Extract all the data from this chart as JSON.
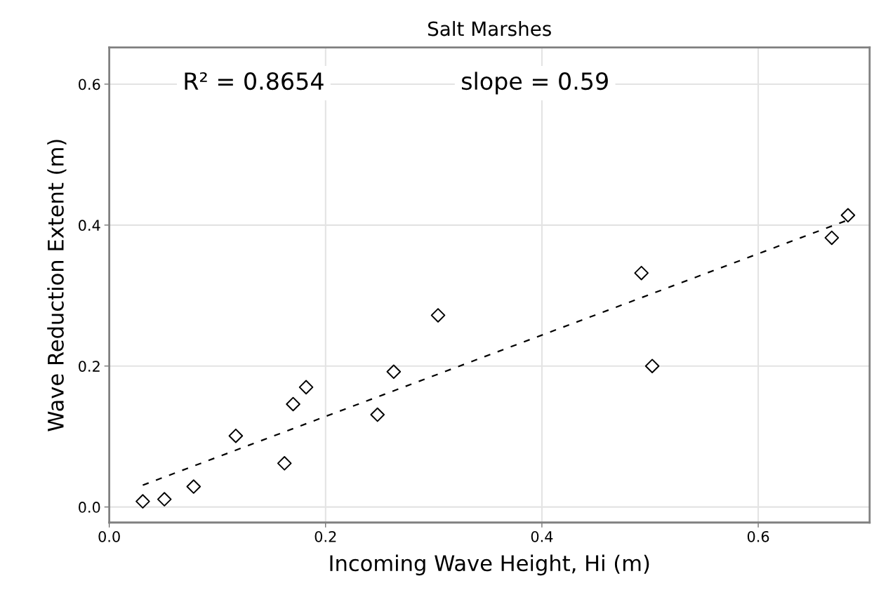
{
  "chart_data": {
    "type": "scatter",
    "title": "Salt Marshes",
    "xlabel": "Incoming Wave Height, Hi (m)",
    "ylabel": "Wave Reduction Extent (m)",
    "annotations": [
      "R² = 0.8654",
      "slope = 0.59"
    ],
    "x": [
      0.031,
      0.051,
      0.078,
      0.117,
      0.162,
      0.17,
      0.182,
      0.248,
      0.263,
      0.304,
      0.492,
      0.502,
      0.668,
      0.683
    ],
    "series": [
      {
        "color": "#000000",
        "marker": "diamond",
        "values": [
          0.008,
          0.011,
          0.029,
          0.101,
          0.062,
          0.146,
          0.17,
          0.131,
          0.192,
          0.272,
          0.332,
          0.2,
          0.382,
          0.414
        ]
      },
      {
        "type": "line",
        "color": "#000000",
        "line_style": "dashed",
        "marker": "none",
        "x": [
          0.031,
          0.686
        ],
        "values": [
          0.031,
          0.409
        ]
      }
    ],
    "xlim": [
      0.0,
      0.703
    ],
    "ylim": [
      -0.022,
      0.652
    ],
    "xticks": [
      {
        "value": 0,
        "label": "0.0"
      },
      0.2,
      0.4,
      0.6
    ],
    "yticks": [
      {
        "value": 0,
        "label": "0.0"
      },
      0.2,
      0.4,
      0.6
    ],
    "grid": true
  }
}
